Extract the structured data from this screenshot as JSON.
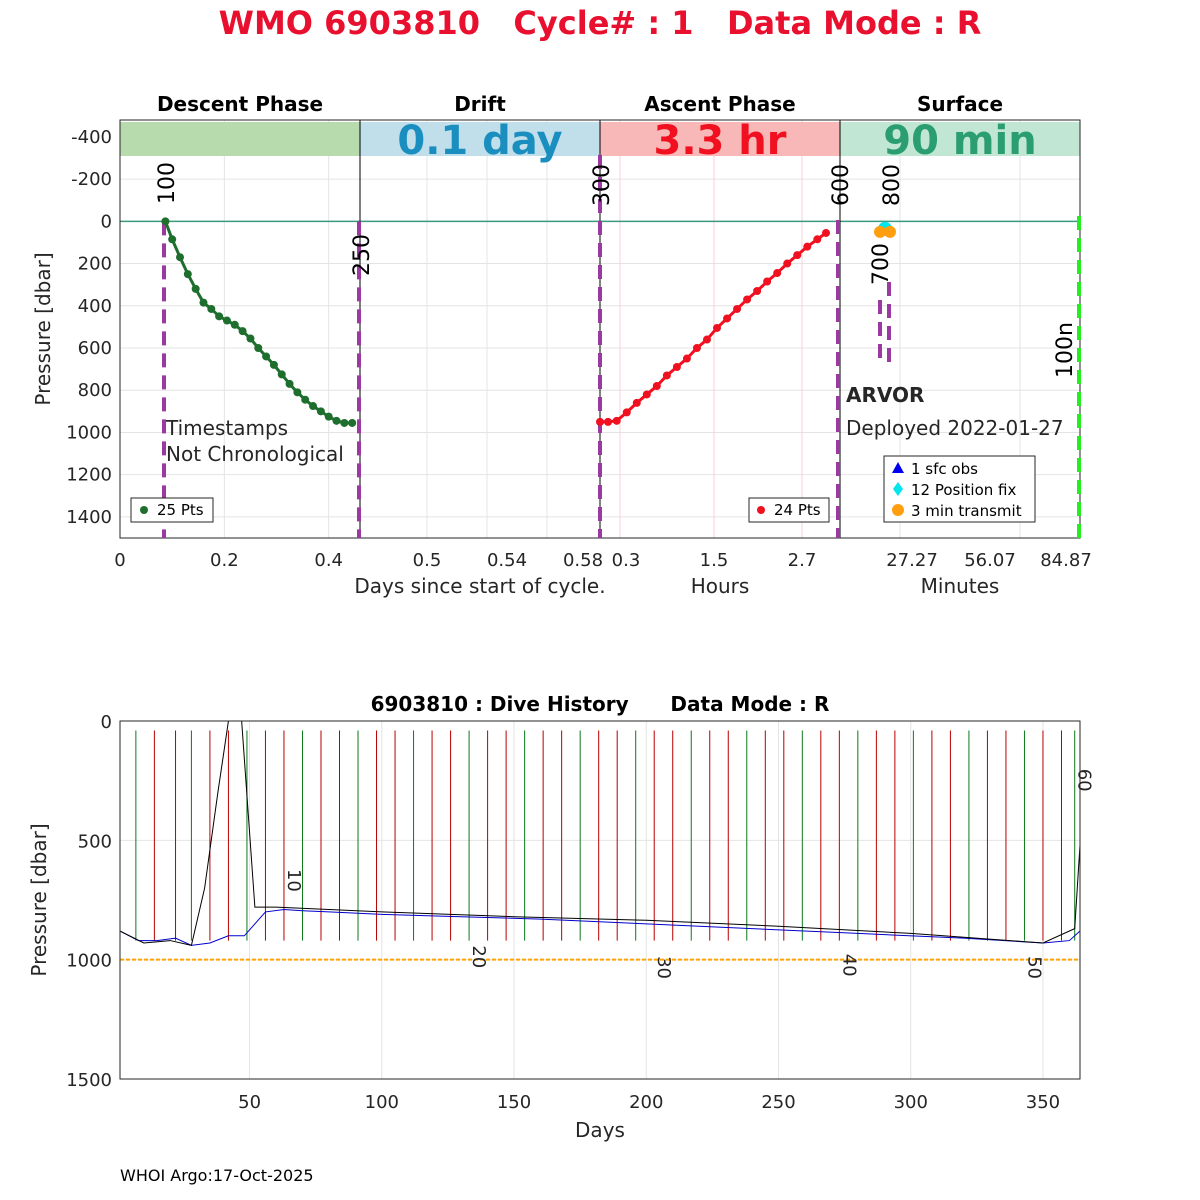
{
  "title": "WMO 6903810   Cycle# : 1   Data Mode : R",
  "footer": "WHOI Argo:17-Oct-2025",
  "colors": {
    "title": "#e8102e",
    "descent": "#1e6e2e",
    "descent_band": "#b8dbae",
    "drift_band": "#c0dfeb",
    "drift_text": "#1a8fbf",
    "ascent": "#f01020",
    "ascent_band": "#f8b8b8",
    "surface_band": "#c2e6d4",
    "surface_text": "#2a9e70",
    "marker_purple": "#9a3aa0",
    "position_fix": "#00e5ee",
    "transmit": "#ff9f10",
    "sfc_obs": "#0000ee",
    "green_dash": "#22ee22",
    "orange_line": "#ffa500",
    "history_red": "#b80000",
    "history_green": "#0c7a1c",
    "history_blue": "#0000cc"
  },
  "chart_data": [
    {
      "type": "line",
      "name": "cycle-profile",
      "phases": [
        {
          "label": "Descent Phase",
          "band_text": ""
        },
        {
          "label": "Drift",
          "band_text": "0.1 day"
        },
        {
          "label": "Ascent Phase",
          "band_text": "3.3 hr"
        },
        {
          "label": "Surface",
          "band_text": "90 min"
        }
      ],
      "ylabel": "Pressure [dbar]",
      "yticks": [
        "-400",
        "-200",
        "0",
        "200",
        "400",
        "600",
        "800",
        "1000",
        "1200",
        "1400"
      ],
      "ylim": [
        -480,
        1500
      ],
      "descent_xticks": [
        "0",
        "0.2",
        "0.4"
      ],
      "descent_xlim": [
        0,
        0.46
      ],
      "drift_xticks": [
        "0.5",
        "0.54",
        "0.58"
      ],
      "ascent_xticks": [
        "0.3",
        "1.5",
        "2.7"
      ],
      "surface_xticks": [
        "27.27",
        "56.07",
        "84.87"
      ],
      "xlabels": {
        "days": "Days since start of cycle.",
        "hours": "Hours",
        "minutes": "Minutes"
      },
      "descent": {
        "series_x": [
          0.087,
          0.1,
          0.115,
          0.13,
          0.145,
          0.16,
          0.175,
          0.19,
          0.205,
          0.22,
          0.235,
          0.25,
          0.265,
          0.28,
          0.295,
          0.31,
          0.325,
          0.34,
          0.355,
          0.37,
          0.385,
          0.4,
          0.415,
          0.43,
          0.445
        ],
        "series_y": [
          0,
          85,
          170,
          250,
          320,
          385,
          415,
          450,
          470,
          490,
          520,
          555,
          600,
          640,
          680,
          725,
          770,
          810,
          845,
          875,
          900,
          925,
          945,
          955,
          955
        ],
        "points_label": "25 Pts",
        "annotation": [
          "Timestamps",
          "Not Chronological"
        ]
      },
      "ascent": {
        "series_x": [
          0.0,
          0.12,
          0.25,
          0.4,
          0.55,
          0.7,
          0.85,
          1.0,
          1.15,
          1.3,
          1.45,
          1.6,
          1.75,
          1.9,
          2.05,
          2.2,
          2.35,
          2.5,
          2.65,
          2.8,
          2.95,
          3.1,
          3.25,
          3.38
        ],
        "series_y": [
          950,
          950,
          945,
          905,
          860,
          820,
          780,
          730,
          690,
          650,
          600,
          560,
          505,
          460,
          415,
          370,
          330,
          285,
          245,
          200,
          160,
          120,
          85,
          55
        ],
        "points_label": "24 Pts"
      },
      "surface": {
        "position_fix_pressure": 45,
        "transmit_pressure": 50,
        "vertical_labels": [
          "100",
          "250",
          "300",
          "600",
          "700",
          "800",
          "100n"
        ],
        "float_type": "ARVOR",
        "deployed": "Deployed 2022-01-27",
        "legend": [
          "1 sfc obs",
          "12 Position fix",
          "3 min transmit"
        ]
      }
    },
    {
      "type": "line",
      "name": "dive-history",
      "title": "6903810 : Dive History      Data Mode : R",
      "xlabel": "Days",
      "ylabel": "Pressure [dbar]",
      "xticks": [
        "50",
        "100",
        "150",
        "200",
        "250",
        "300",
        "350"
      ],
      "yticks": [
        "0",
        "500",
        "1000",
        "1500"
      ],
      "xlim": [
        1,
        364
      ],
      "ylim": [
        0,
        1500
      ],
      "reference_pressure": 1000,
      "profile_days": [
        7,
        14,
        22,
        28,
        35,
        42,
        49,
        56,
        63,
        70,
        77,
        84,
        91,
        98,
        105,
        112,
        119,
        126,
        133,
        140,
        147,
        154,
        161,
        168,
        175,
        182,
        189,
        196,
        203,
        210,
        217,
        224,
        231,
        238,
        245,
        252,
        259,
        266,
        273,
        280,
        287,
        294,
        301,
        308,
        315,
        322,
        329,
        336,
        343,
        350,
        357,
        362
      ],
      "cycle_labels": [
        {
          "label": "10",
          "day": 63,
          "pressure": 620
        },
        {
          "label": "20",
          "day": 133,
          "pressure": 940
        },
        {
          "label": "30",
          "day": 203,
          "pressure": 985
        },
        {
          "label": "40",
          "day": 273,
          "pressure": 975
        },
        {
          "label": "50",
          "day": 343,
          "pressure": 985
        },
        {
          "label": "60",
          "day": 362,
          "pressure": 200
        }
      ],
      "drift_x": [
        1,
        8,
        15,
        22,
        28,
        35,
        42,
        48,
        56,
        63,
        70,
        80,
        100,
        130,
        160,
        200,
        240,
        280,
        320,
        350,
        360,
        364
      ],
      "drift_y": [
        880,
        920,
        920,
        910,
        940,
        930,
        900,
        900,
        800,
        790,
        795,
        800,
        810,
        820,
        830,
        850,
        870,
        890,
        910,
        930,
        920,
        880
      ],
      "black_x": [
        1,
        10,
        20,
        28,
        33,
        38,
        42,
        47,
        52,
        60,
        100,
        150,
        200,
        250,
        300,
        350,
        362,
        364
      ],
      "black_y": [
        880,
        930,
        920,
        940,
        700,
        300,
        0,
        0,
        780,
        780,
        800,
        820,
        835,
        860,
        890,
        930,
        870,
        520
      ]
    }
  ]
}
